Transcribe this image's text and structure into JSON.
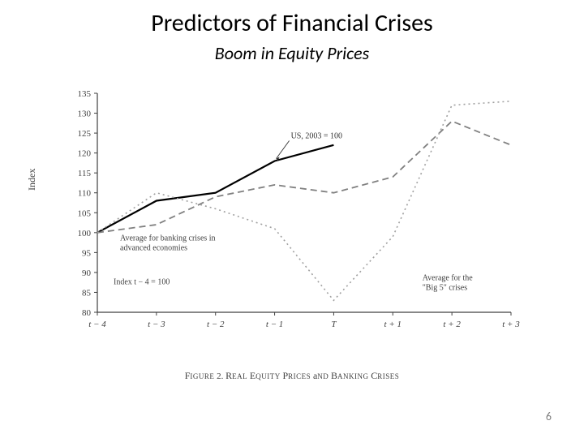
{
  "title": "Predictors of Financial Crises",
  "subtitle": "Boom in Equity Prices",
  "page_number": "6",
  "chart": {
    "type": "line",
    "background_color": "#ffffff",
    "axis_color": "#404040",
    "tick_color": "#404040",
    "tick_fontsize": 11,
    "label_fontsize": 12,
    "ylabel": "Index",
    "ylim": [
      80,
      135
    ],
    "ytick_step": 5,
    "x_categories": [
      "t − 4",
      "t − 3",
      "t − 2",
      "t − 1",
      "T",
      "t + 1",
      "t + 2",
      "t + 3"
    ],
    "series": [
      {
        "name": "US, 2003 = 100",
        "color": "#000000",
        "width": 2.2,
        "dash": "solid",
        "values": [
          100,
          108,
          110,
          118,
          122,
          null,
          null,
          null
        ],
        "label_text": "US, 2003 = 100",
        "label_anchor_index": 3,
        "arrow": true
      },
      {
        "name": "Average for banking crises in advanced economies",
        "color": "#808080",
        "width": 1.8,
        "dash": "8,5",
        "values": [
          100,
          102,
          109,
          112,
          110,
          114,
          128,
          122
        ],
        "label_text": "Average for banking crises in\nadvanced economies",
        "label_anchor_index": 1,
        "arrow": false
      },
      {
        "name": "Average for the \"Big 5\" crises",
        "color": "#a0a0a0",
        "width": 1.6,
        "dash": "2,4",
        "values": [
          100,
          110,
          106,
          101,
          83,
          99,
          132,
          133
        ],
        "label_text": "Average for the\n\"Big 5\" crises",
        "label_anchor_index": 6,
        "arrow": false
      }
    ],
    "index_note": "Index t − 4 = 100",
    "caption": "Figure 2. Real Equity Prices and Banking Crises",
    "caption_style": "smallcaps"
  }
}
